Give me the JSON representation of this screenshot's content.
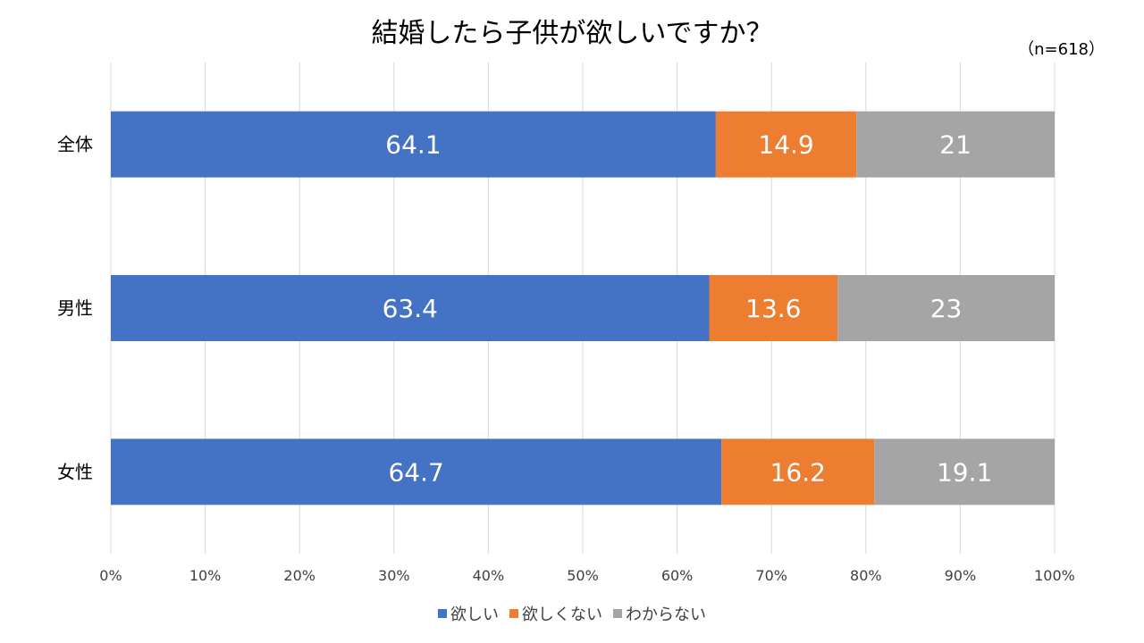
{
  "chart_data": {
    "type": "bar",
    "orientation": "horizontal",
    "stacked": true,
    "percent_stacked": true,
    "title": "結婚したら子供が欲しいですか？",
    "note": "（n=618）",
    "categories": [
      "全体",
      "男性",
      "女性"
    ],
    "series": [
      {
        "name": "欲しい",
        "color": "#4472c4",
        "values": [
          64.1,
          63.4,
          64.7
        ],
        "labels": [
          "64.1",
          "63.4",
          "64.7"
        ]
      },
      {
        "name": "欲しくない",
        "color": "#ed7d31",
        "values": [
          14.9,
          13.6,
          16.2
        ],
        "labels": [
          "14.9",
          "13.6",
          "16.2"
        ]
      },
      {
        "name": "わからない",
        "color": "#a5a5a5",
        "values": [
          21,
          23,
          19.1
        ],
        "labels": [
          "21",
          "23",
          "19.1"
        ]
      }
    ],
    "xlim": [
      0,
      100
    ],
    "x_ticks": [
      "0%",
      "10%",
      "20%",
      "30%",
      "40%",
      "50%",
      "60%",
      "70%",
      "80%",
      "90%",
      "100%"
    ],
    "grid": true,
    "legend_position": "bottom"
  }
}
